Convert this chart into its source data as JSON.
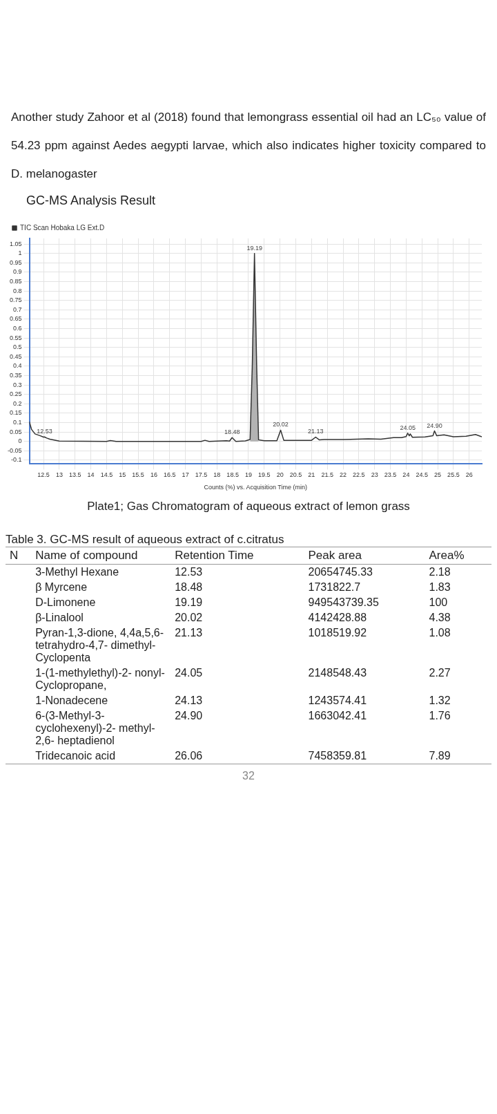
{
  "chart_data": {
    "type": "line",
    "title": "GC-MS Analysis Result",
    "xlabel": "Counts (%) vs. Acquisition Time (min)",
    "xlim": [
      12.05,
      26.4
    ],
    "xticks": [
      12.5,
      13,
      13.5,
      14,
      14.5,
      15,
      15.5,
      16,
      16.5,
      17,
      17.5,
      18,
      18.5,
      19,
      19.5,
      20,
      20.5,
      21,
      21.5,
      22,
      22.5,
      23,
      23.5,
      24,
      24.5,
      25,
      25.5,
      26
    ],
    "ylim": [
      -0.12,
      1.08
    ],
    "yticks": [
      -0.1,
      -0.05,
      0,
      0.05,
      0.1,
      0.15,
      0.2,
      0.25,
      0.3,
      0.35,
      0.4,
      0.45,
      0.5,
      0.55,
      0.6,
      0.65,
      0.7,
      0.75,
      0.8,
      0.85,
      0.9,
      0.95,
      1,
      1.05
    ],
    "grid": true,
    "legend": "top left",
    "marker": "none",
    "series": [
      {
        "name": "TIC Scan Hobaka LG Ext.D",
        "color": "#333333",
        "x": [
          12.05,
          12.12,
          12.23,
          12.4,
          12.5,
          12.53,
          12.6,
          12.7,
          13.0,
          14.5,
          14.62,
          14.8,
          17.5,
          17.62,
          17.75,
          18.3,
          18.4,
          18.48,
          18.6,
          18.9,
          19.05,
          19.12,
          19.19,
          19.26,
          19.32,
          19.5,
          19.9,
          20.02,
          20.12,
          20.4,
          21.0,
          21.13,
          21.25,
          21.4,
          22.0,
          22.8,
          23.2,
          23.6,
          23.85,
          24.0,
          24.05,
          24.1,
          24.13,
          24.2,
          24.6,
          24.85,
          24.9,
          24.97,
          25.2,
          25.5,
          25.9,
          26.2,
          26.4
        ],
        "values": [
          0.105,
          0.064,
          0.04,
          0.03,
          0.023,
          0.024,
          0.018,
          0.012,
          0.002,
          0.0,
          0.005,
          0.0,
          0.0,
          0.006,
          0.0,
          0.004,
          0.002,
          0.02,
          0.0,
          0.003,
          0.01,
          0.4,
          1.0,
          0.4,
          0.008,
          0.004,
          0.004,
          0.06,
          0.006,
          0.006,
          0.006,
          0.023,
          0.008,
          0.01,
          0.01,
          0.014,
          0.012,
          0.02,
          0.02,
          0.026,
          0.044,
          0.03,
          0.04,
          0.022,
          0.024,
          0.03,
          0.056,
          0.03,
          0.035,
          0.025,
          0.028,
          0.037,
          0.025
        ]
      },
      {
        "type": "area",
        "color": "#b3b3b3",
        "x": [
          19.05,
          19.12,
          19.19,
          19.26,
          19.32
        ],
        "values": [
          0.01,
          0.4,
          1.0,
          0.4,
          0.008
        ]
      }
    ],
    "annotations": [
      "Another study Zahoor et al (2018) found that lemongrass essential oil had an LC₅₀ value of 54.23 ppm against Aedes aegypti larvae, which also indicates higher toxicity compared to D. melanogaster",
      "Plate1; Gas Chromatogram of aqueous extract of lemon grass",
      "Table 3. GC-MS result of aqueous extract of c.citratus",
      "32",
      {
        "text": "12.53",
        "x": 12.53,
        "y": 0.024
      },
      {
        "text": "18.48",
        "x": 18.48,
        "y": 0.02
      },
      {
        "text": "19.19",
        "x": 19.19,
        "y": 1.0
      },
      {
        "text": "20.02",
        "x": 20.02,
        "y": 0.06
      },
      {
        "text": "21.13",
        "x": 21.13,
        "y": 0.023
      },
      {
        "text": "24.05",
        "x": 24.05,
        "y": 0.044
      },
      {
        "text": "24.90",
        "x": 24.9,
        "y": 0.056
      },
      "N",
      "Name of compound",
      "Retention Time",
      "Peak area",
      "Area%",
      "3-Methyl Hexane",
      "12.53",
      "20654745.33",
      "2.18",
      "β Myrcene",
      "18.48",
      "1731822.7",
      "1.83",
      "D-Limonene",
      "19.19",
      "949543739.35",
      "100",
      "β-Linalool",
      "20.02",
      "4142428.88",
      "4.38",
      "Pyran-1,3-dione, 4,4a,5,6- tetrahydro-4,7- dimethyl-   Cyclopenta",
      "21.13",
      "1018519.92",
      "1.08",
      "1-(1-methylethyl)-2- nonyl- Cyclopropane,",
      "24.05",
      "2148548.43",
      "2.27",
      "1-Nonadecene",
      "24.13",
      "1243574.41",
      "1.32",
      "6-(3-Methyl-3- cyclohexenyl)-2- methyl- 2,6- heptadienol",
      "24.90",
      "1663042.41",
      "1.76",
      "Tridecanoic acid",
      "26.06",
      "7458359.81",
      "7.89"
    ]
  }
}
